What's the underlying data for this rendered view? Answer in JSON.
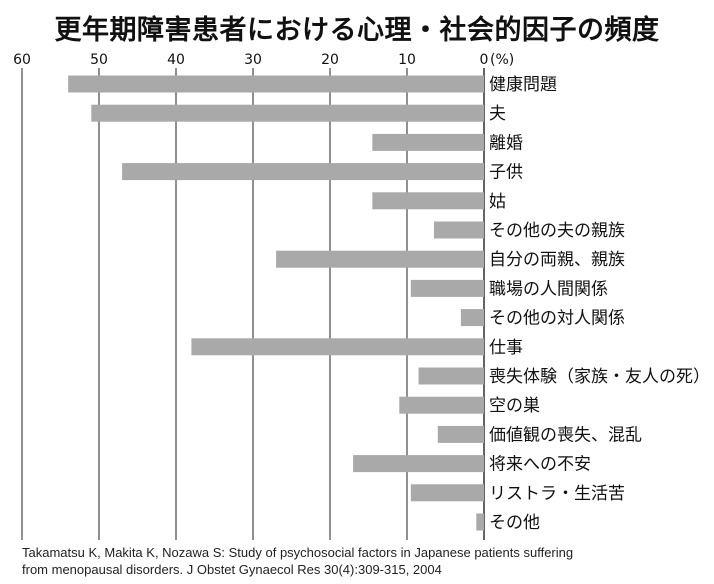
{
  "title": "更年期障害患者における心理・社会的因子の頻度",
  "unit_label": "(%)",
  "citation": {
    "line1": "Takamatsu K, Makita K, Nozawa S: Study of psychosocial factors in Japanese patients suffering",
    "line2": "from menopausal disorders. J Obstet Gynaecol Res 30(4):309-315, 2004"
  },
  "colors": {
    "bar": "#a9a9a9",
    "axis": "#222222"
  },
  "chart_data": {
    "type": "bar",
    "orientation": "horizontal",
    "x_direction": "reversed",
    "xlim": [
      0,
      60
    ],
    "xticks": [
      60,
      50,
      40,
      30,
      20,
      10,
      0
    ],
    "grid": true,
    "categories": [
      "健康問題",
      "夫",
      "離婚",
      "子供",
      "姑",
      "その他の夫の親族",
      "自分の両親、親族",
      "職場の人間関係",
      "その他の対人関係",
      "仕事",
      "喪失体験（家族・友人の死）",
      "空の巣",
      "価値観の喪失、混乱",
      "将来への不安",
      "リストラ・生活苦",
      "その他"
    ],
    "values": [
      54,
      51,
      14.5,
      47,
      14.5,
      6.5,
      27,
      9.5,
      3,
      38,
      8.5,
      11,
      6,
      17,
      9.5,
      1
    ]
  }
}
